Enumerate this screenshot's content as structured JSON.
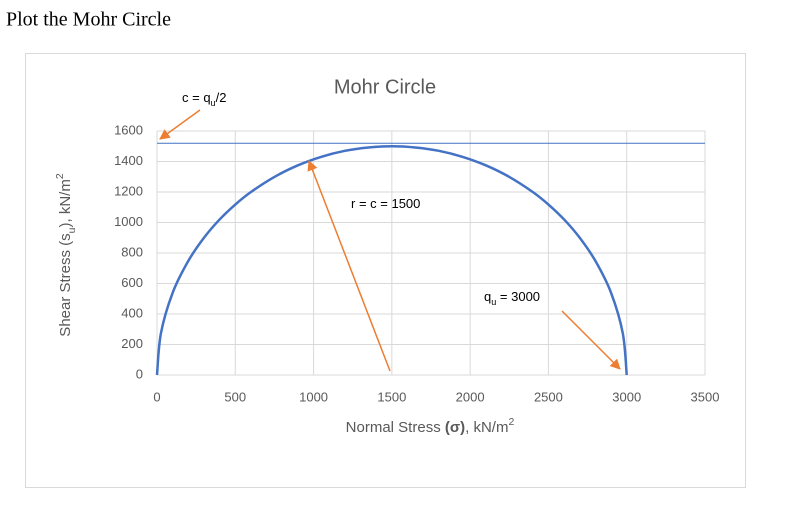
{
  "heading": "Plot the Mohr Circle",
  "chart_data": {
    "type": "line",
    "title": "Mohr Circle",
    "x_label": [
      {
        "text": "Normal Stress ",
        "style": "normal"
      },
      {
        "text": "(σ)",
        "style": "bold"
      },
      {
        "text": ", kN/m",
        "style": "normal"
      },
      {
        "text": "2",
        "style": "sup"
      }
    ],
    "y_label": [
      {
        "text": "Shear Stress (s",
        "style": "normal"
      },
      {
        "text": "u",
        "style": "sub"
      },
      {
        "text": "), kN/m",
        "style": "normal"
      },
      {
        "text": "2",
        "style": "sup"
      }
    ],
    "xlim": [
      0,
      3500
    ],
    "xticks": [
      0,
      500,
      1000,
      1500,
      2000,
      2500,
      3000,
      3500
    ],
    "ylim": [
      0,
      1600
    ],
    "yticks": [
      0,
      200,
      400,
      600,
      800,
      1000,
      1200,
      1400,
      1600
    ],
    "grid": true,
    "series": [
      {
        "color": "#4472c4",
        "line_width": 2.5,
        "x": [
          0,
          25,
          100,
          200,
          300,
          400,
          500,
          600,
          750,
          900,
          1050,
          1200,
          1350,
          1500,
          1650,
          1800,
          1950,
          2100,
          2250,
          2400,
          2500,
          2600,
          2700,
          2800,
          2900,
          2975,
          3000
        ],
        "values": [
          0,
          273,
          539,
          748,
          900,
          1020,
          1118,
          1200,
          1299,
          1375,
          1431,
          1470,
          1492,
          1500,
          1492,
          1470,
          1431,
          1375,
          1299,
          1200,
          1118,
          1020,
          900,
          748,
          539,
          273,
          0
        ]
      },
      {
        "color": "#4472c4",
        "line_width": 1,
        "x": [
          0,
          3500
        ],
        "values": [
          1520,
          1520
        ]
      }
    ],
    "annotations": [
      {
        "parts": [
          {
            "text": "c = q",
            "style": "normal"
          },
          {
            "text": "u",
            "style": "sub"
          },
          {
            "text": "/2",
            "style": "normal"
          }
        ]
      },
      {
        "parts": [
          {
            "text": "r = c = 1500",
            "style": "normal"
          }
        ]
      },
      {
        "parts": [
          {
            "text": "q",
            "style": "normal"
          },
          {
            "text": "u",
            "style": "sub"
          },
          {
            "text": " = 3000",
            "style": "normal"
          }
        ]
      }
    ],
    "annotation_color": "#ed7d31"
  }
}
